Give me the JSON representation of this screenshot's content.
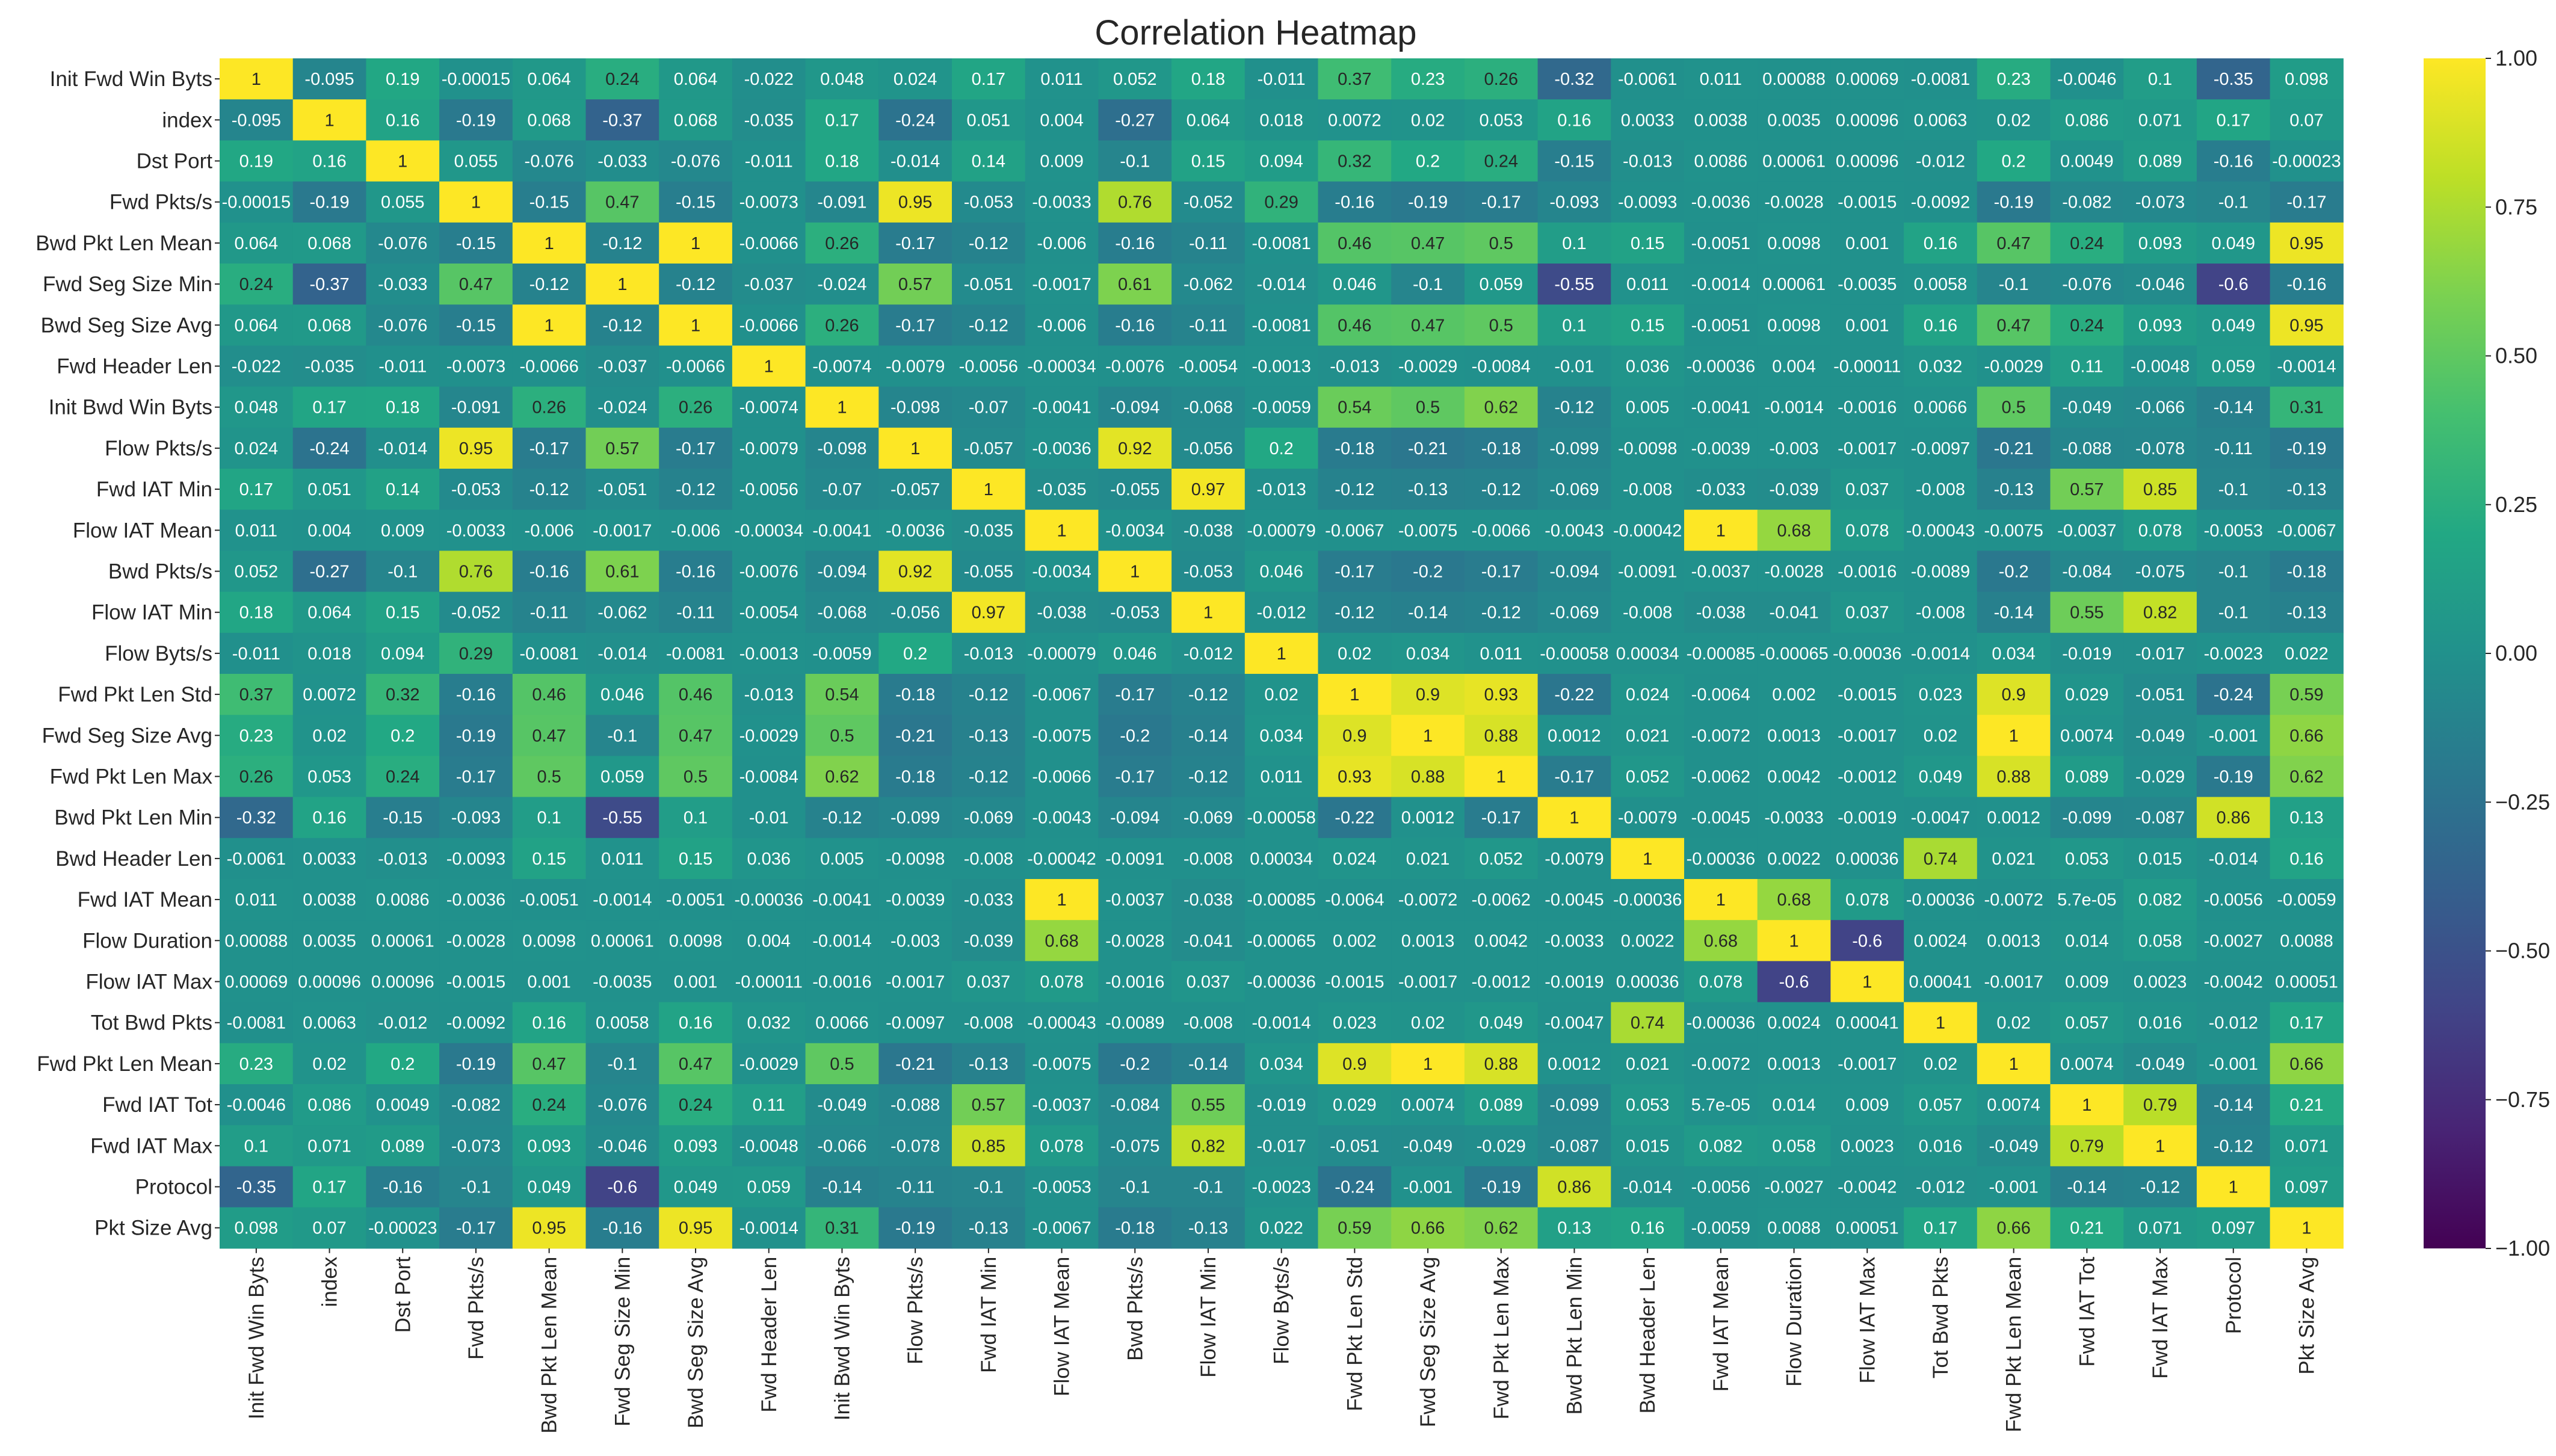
{
  "chart_data": {
    "type": "heatmap",
    "title": "Correlation Heatmap",
    "colormap": "viridis",
    "vmin": -1.0,
    "vmax": 1.0,
    "colorbar_ticks": [
      "1.00",
      "0.75",
      "0.50",
      "0.25",
      "0.00",
      "−0.25",
      "−0.50",
      "−0.75",
      "−1.00"
    ],
    "colorbar_tick_values": [
      1.0,
      0.75,
      0.5,
      0.25,
      0.0,
      -0.25,
      -0.5,
      -0.75,
      -1.0
    ],
    "labels": [
      "Init Fwd Win Byts",
      "index",
      "Dst Port",
      "Fwd Pkts/s",
      "Bwd Pkt Len Mean",
      "Fwd Seg Size Min",
      "Bwd Seg Size Avg",
      "Fwd Header Len",
      "Init Bwd Win Byts",
      "Flow Pkts/s",
      "Fwd IAT Min",
      "Flow IAT Mean",
      "Bwd Pkts/s",
      "Flow IAT Min",
      "Flow Byts/s",
      "Fwd Pkt Len Std",
      "Fwd Seg Size Avg",
      "Fwd Pkt Len Max",
      "Bwd Pkt Len Min",
      "Bwd Header Len",
      "Fwd IAT Mean",
      "Flow Duration",
      "Flow IAT Max",
      "Tot Bwd Pkts",
      "Fwd Pkt Len Mean",
      "Fwd IAT Tot",
      "Fwd IAT Max",
      "Protocol",
      "Pkt Size Avg"
    ],
    "matrix": [
      [
        "1",
        "-0.095",
        "0.19",
        "-0.00015",
        "0.064",
        "0.24",
        "0.064",
        "-0.022",
        "0.048",
        "0.024",
        "0.17",
        "0.011",
        "0.052",
        "0.18",
        "-0.011",
        "0.37",
        "0.23",
        "0.26",
        "-0.32",
        "-0.0061",
        "0.011",
        "0.00088",
        "0.00069",
        "-0.0081",
        "0.23",
        "-0.0046",
        "0.1",
        "-0.35",
        "0.098"
      ],
      [
        "-0.095",
        "1",
        "0.16",
        "-0.19",
        "0.068",
        "-0.37",
        "0.068",
        "-0.035",
        "0.17",
        "-0.24",
        "0.051",
        "0.004",
        "-0.27",
        "0.064",
        "0.018",
        "0.0072",
        "0.02",
        "0.053",
        "0.16",
        "0.0033",
        "0.0038",
        "0.0035",
        "0.00096",
        "0.0063",
        "0.02",
        "0.086",
        "0.071",
        "0.17",
        "0.07"
      ],
      [
        "0.19",
        "0.16",
        "1",
        "0.055",
        "-0.076",
        "-0.033",
        "-0.076",
        "-0.011",
        "0.18",
        "-0.014",
        "0.14",
        "0.009",
        "-0.1",
        "0.15",
        "0.094",
        "0.32",
        "0.2",
        "0.24",
        "-0.15",
        "-0.013",
        "0.0086",
        "0.00061",
        "0.00096",
        "-0.012",
        "0.2",
        "0.0049",
        "0.089",
        "-0.16",
        "-0.00023"
      ],
      [
        "-0.00015",
        "-0.19",
        "0.055",
        "1",
        "-0.15",
        "0.47",
        "-0.15",
        "-0.0073",
        "-0.091",
        "0.95",
        "-0.053",
        "-0.0033",
        "0.76",
        "-0.052",
        "0.29",
        "-0.16",
        "-0.19",
        "-0.17",
        "-0.093",
        "-0.0093",
        "-0.0036",
        "-0.0028",
        "-0.0015",
        "-0.0092",
        "-0.19",
        "-0.082",
        "-0.073",
        "-0.1",
        "-0.17"
      ],
      [
        "0.064",
        "0.068",
        "-0.076",
        "-0.15",
        "1",
        "-0.12",
        "1",
        "-0.0066",
        "0.26",
        "-0.17",
        "-0.12",
        "-0.006",
        "-0.16",
        "-0.11",
        "-0.0081",
        "0.46",
        "0.47",
        "0.5",
        "0.1",
        "0.15",
        "-0.0051",
        "0.0098",
        "0.001",
        "0.16",
        "0.47",
        "0.24",
        "0.093",
        "0.049",
        "0.95"
      ],
      [
        "0.24",
        "-0.37",
        "-0.033",
        "0.47",
        "-0.12",
        "1",
        "-0.12",
        "-0.037",
        "-0.024",
        "0.57",
        "-0.051",
        "-0.0017",
        "0.61",
        "-0.062",
        "-0.014",
        "0.046",
        "-0.1",
        "0.059",
        "-0.55",
        "0.011",
        "-0.0014",
        "0.00061",
        "-0.0035",
        "0.0058",
        "-0.1",
        "-0.076",
        "-0.046",
        "-0.6",
        "-0.16"
      ],
      [
        "0.064",
        "0.068",
        "-0.076",
        "-0.15",
        "1",
        "-0.12",
        "1",
        "-0.0066",
        "0.26",
        "-0.17",
        "-0.12",
        "-0.006",
        "-0.16",
        "-0.11",
        "-0.0081",
        "0.46",
        "0.47",
        "0.5",
        "0.1",
        "0.15",
        "-0.0051",
        "0.0098",
        "0.001",
        "0.16",
        "0.47",
        "0.24",
        "0.093",
        "0.049",
        "0.95"
      ],
      [
        "-0.022",
        "-0.035",
        "-0.011",
        "-0.0073",
        "-0.0066",
        "-0.037",
        "-0.0066",
        "1",
        "-0.0074",
        "-0.0079",
        "-0.0056",
        "-0.00034",
        "-0.0076",
        "-0.0054",
        "-0.0013",
        "-0.013",
        "-0.0029",
        "-0.0084",
        "-0.01",
        "0.036",
        "-0.00036",
        "0.004",
        "-0.00011",
        "0.032",
        "-0.0029",
        "0.11",
        "-0.0048",
        "0.059",
        "-0.0014"
      ],
      [
        "0.048",
        "0.17",
        "0.18",
        "-0.091",
        "0.26",
        "-0.024",
        "0.26",
        "-0.0074",
        "1",
        "-0.098",
        "-0.07",
        "-0.0041",
        "-0.094",
        "-0.068",
        "-0.0059",
        "0.54",
        "0.5",
        "0.62",
        "-0.12",
        "0.005",
        "-0.0041",
        "-0.0014",
        "-0.0016",
        "0.0066",
        "0.5",
        "-0.049",
        "-0.066",
        "-0.14",
        "0.31"
      ],
      [
        "0.024",
        "-0.24",
        "-0.014",
        "0.95",
        "-0.17",
        "0.57",
        "-0.17",
        "-0.0079",
        "-0.098",
        "1",
        "-0.057",
        "-0.0036",
        "0.92",
        "-0.056",
        "0.2",
        "-0.18",
        "-0.21",
        "-0.18",
        "-0.099",
        "-0.0098",
        "-0.0039",
        "-0.003",
        "-0.0017",
        "-0.0097",
        "-0.21",
        "-0.088",
        "-0.078",
        "-0.11",
        "-0.19"
      ],
      [
        "0.17",
        "0.051",
        "0.14",
        "-0.053",
        "-0.12",
        "-0.051",
        "-0.12",
        "-0.0056",
        "-0.07",
        "-0.057",
        "1",
        "-0.035",
        "-0.055",
        "0.97",
        "-0.013",
        "-0.12",
        "-0.13",
        "-0.12",
        "-0.069",
        "-0.008",
        "-0.033",
        "-0.039",
        "0.037",
        "-0.008",
        "-0.13",
        "0.57",
        "0.85",
        "-0.1",
        "-0.13"
      ],
      [
        "0.011",
        "0.004",
        "0.009",
        "-0.0033",
        "-0.006",
        "-0.0017",
        "-0.006",
        "-0.00034",
        "-0.0041",
        "-0.0036",
        "-0.035",
        "1",
        "-0.0034",
        "-0.038",
        "-0.00079",
        "-0.0067",
        "-0.0075",
        "-0.0066",
        "-0.0043",
        "-0.00042",
        "1",
        "0.68",
        "0.078",
        "-0.00043",
        "-0.0075",
        "-0.0037",
        "0.078",
        "-0.0053",
        "-0.0067"
      ],
      [
        "0.052",
        "-0.27",
        "-0.1",
        "0.76",
        "-0.16",
        "0.61",
        "-0.16",
        "-0.0076",
        "-0.094",
        "0.92",
        "-0.055",
        "-0.0034",
        "1",
        "-0.053",
        "0.046",
        "-0.17",
        "-0.2",
        "-0.17",
        "-0.094",
        "-0.0091",
        "-0.0037",
        "-0.0028",
        "-0.0016",
        "-0.0089",
        "-0.2",
        "-0.084",
        "-0.075",
        "-0.1",
        "-0.18"
      ],
      [
        "0.18",
        "0.064",
        "0.15",
        "-0.052",
        "-0.11",
        "-0.062",
        "-0.11",
        "-0.0054",
        "-0.068",
        "-0.056",
        "0.97",
        "-0.038",
        "-0.053",
        "1",
        "-0.012",
        "-0.12",
        "-0.14",
        "-0.12",
        "-0.069",
        "-0.008",
        "-0.038",
        "-0.041",
        "0.037",
        "-0.008",
        "-0.14",
        "0.55",
        "0.82",
        "-0.1",
        "-0.13"
      ],
      [
        "-0.011",
        "0.018",
        "0.094",
        "0.29",
        "-0.0081",
        "-0.014",
        "-0.0081",
        "-0.0013",
        "-0.0059",
        "0.2",
        "-0.013",
        "-0.00079",
        "0.046",
        "-0.012",
        "1",
        "0.02",
        "0.034",
        "0.011",
        "-0.00058",
        "0.00034",
        "-0.00085",
        "-0.00065",
        "-0.00036",
        "-0.0014",
        "0.034",
        "-0.019",
        "-0.017",
        "-0.0023",
        "0.022"
      ],
      [
        "0.37",
        "0.0072",
        "0.32",
        "-0.16",
        "0.46",
        "0.046",
        "0.46",
        "-0.013",
        "0.54",
        "-0.18",
        "-0.12",
        "-0.0067",
        "-0.17",
        "-0.12",
        "0.02",
        "1",
        "0.9",
        "0.93",
        "-0.22",
        "0.024",
        "-0.0064",
        "0.002",
        "-0.0015",
        "0.023",
        "0.9",
        "0.029",
        "-0.051",
        "-0.24",
        "0.59"
      ],
      [
        "0.23",
        "0.02",
        "0.2",
        "-0.19",
        "0.47",
        "-0.1",
        "0.47",
        "-0.0029",
        "0.5",
        "-0.21",
        "-0.13",
        "-0.0075",
        "-0.2",
        "-0.14",
        "0.034",
        "0.9",
        "1",
        "0.88",
        "0.0012",
        "0.021",
        "-0.0072",
        "0.0013",
        "-0.0017",
        "0.02",
        "1",
        "0.0074",
        "-0.049",
        "-0.001",
        "0.66"
      ],
      [
        "0.26",
        "0.053",
        "0.24",
        "-0.17",
        "0.5",
        "0.059",
        "0.5",
        "-0.0084",
        "0.62",
        "-0.18",
        "-0.12",
        "-0.0066",
        "-0.17",
        "-0.12",
        "0.011",
        "0.93",
        "0.88",
        "1",
        "-0.17",
        "0.052",
        "-0.0062",
        "0.0042",
        "-0.0012",
        "0.049",
        "0.88",
        "0.089",
        "-0.029",
        "-0.19",
        "0.62"
      ],
      [
        "-0.32",
        "0.16",
        "-0.15",
        "-0.093",
        "0.1",
        "-0.55",
        "0.1",
        "-0.01",
        "-0.12",
        "-0.099",
        "-0.069",
        "-0.0043",
        "-0.094",
        "-0.069",
        "-0.00058",
        "-0.22",
        "0.0012",
        "-0.17",
        "1",
        "-0.0079",
        "-0.0045",
        "-0.0033",
        "-0.0019",
        "-0.0047",
        "0.0012",
        "-0.099",
        "-0.087",
        "0.86",
        "0.13"
      ],
      [
        "-0.0061",
        "0.0033",
        "-0.013",
        "-0.0093",
        "0.15",
        "0.011",
        "0.15",
        "0.036",
        "0.005",
        "-0.0098",
        "-0.008",
        "-0.00042",
        "-0.0091",
        "-0.008",
        "0.00034",
        "0.024",
        "0.021",
        "0.052",
        "-0.0079",
        "1",
        "-0.00036",
        "0.0022",
        "0.00036",
        "0.74",
        "0.021",
        "0.053",
        "0.015",
        "-0.014",
        "0.16"
      ],
      [
        "0.011",
        "0.0038",
        "0.0086",
        "-0.0036",
        "-0.0051",
        "-0.0014",
        "-0.0051",
        "-0.00036",
        "-0.0041",
        "-0.0039",
        "-0.033",
        "1",
        "-0.0037",
        "-0.038",
        "-0.00085",
        "-0.0064",
        "-0.0072",
        "-0.0062",
        "-0.0045",
        "-0.00036",
        "1",
        "0.68",
        "0.078",
        "-0.00036",
        "-0.0072",
        "5.7e-05",
        "0.082",
        "-0.0056",
        "-0.0059"
      ],
      [
        "0.00088",
        "0.0035",
        "0.00061",
        "-0.0028",
        "0.0098",
        "0.00061",
        "0.0098",
        "0.004",
        "-0.0014",
        "-0.003",
        "-0.039",
        "0.68",
        "-0.0028",
        "-0.041",
        "-0.00065",
        "0.002",
        "0.0013",
        "0.0042",
        "-0.0033",
        "0.0022",
        "0.68",
        "1",
        "-0.6",
        "0.0024",
        "0.0013",
        "0.014",
        "0.058",
        "-0.0027",
        "0.0088"
      ],
      [
        "0.00069",
        "0.00096",
        "0.00096",
        "-0.0015",
        "0.001",
        "-0.0035",
        "0.001",
        "-0.00011",
        "-0.0016",
        "-0.0017",
        "0.037",
        "0.078",
        "-0.0016",
        "0.037",
        "-0.00036",
        "-0.0015",
        "-0.0017",
        "-0.0012",
        "-0.0019",
        "0.00036",
        "0.078",
        "-0.6",
        "1",
        "0.00041",
        "-0.0017",
        "0.009",
        "0.0023",
        "-0.0042",
        "0.00051"
      ],
      [
        "-0.0081",
        "0.0063",
        "-0.012",
        "-0.0092",
        "0.16",
        "0.0058",
        "0.16",
        "0.032",
        "0.0066",
        "-0.0097",
        "-0.008",
        "-0.00043",
        "-0.0089",
        "-0.008",
        "-0.0014",
        "0.023",
        "0.02",
        "0.049",
        "-0.0047",
        "0.74",
        "-0.00036",
        "0.0024",
        "0.00041",
        "1",
        "0.02",
        "0.057",
        "0.016",
        "-0.012",
        "0.17"
      ],
      [
        "0.23",
        "0.02",
        "0.2",
        "-0.19",
        "0.47",
        "-0.1",
        "0.47",
        "-0.0029",
        "0.5",
        "-0.21",
        "-0.13",
        "-0.0075",
        "-0.2",
        "-0.14",
        "0.034",
        "0.9",
        "1",
        "0.88",
        "0.0012",
        "0.021",
        "-0.0072",
        "0.0013",
        "-0.0017",
        "0.02",
        "1",
        "0.0074",
        "-0.049",
        "-0.001",
        "0.66"
      ],
      [
        "-0.0046",
        "0.086",
        "0.0049",
        "-0.082",
        "0.24",
        "-0.076",
        "0.24",
        "0.11",
        "-0.049",
        "-0.088",
        "0.57",
        "-0.0037",
        "-0.084",
        "0.55",
        "-0.019",
        "0.029",
        "0.0074",
        "0.089",
        "-0.099",
        "0.053",
        "5.7e-05",
        "0.014",
        "0.009",
        "0.057",
        "0.0074",
        "1",
        "0.79",
        "-0.14",
        "0.21"
      ],
      [
        "0.1",
        "0.071",
        "0.089",
        "-0.073",
        "0.093",
        "-0.046",
        "0.093",
        "-0.0048",
        "-0.066",
        "-0.078",
        "0.85",
        "0.078",
        "-0.075",
        "0.82",
        "-0.017",
        "-0.051",
        "-0.049",
        "-0.029",
        "-0.087",
        "0.015",
        "0.082",
        "0.058",
        "0.0023",
        "0.016",
        "-0.049",
        "0.79",
        "1",
        "-0.12",
        "0.071"
      ],
      [
        "-0.35",
        "0.17",
        "-0.16",
        "-0.1",
        "0.049",
        "-0.6",
        "0.049",
        "0.059",
        "-0.14",
        "-0.11",
        "-0.1",
        "-0.0053",
        "-0.1",
        "-0.1",
        "-0.0023",
        "-0.24",
        "-0.001",
        "-0.19",
        "0.86",
        "-0.014",
        "-0.0056",
        "-0.0027",
        "-0.0042",
        "-0.012",
        "-0.001",
        "-0.14",
        "-0.12",
        "1",
        "0.097"
      ],
      [
        "0.098",
        "0.07",
        "-0.00023",
        "-0.17",
        "0.95",
        "-0.16",
        "0.95",
        "-0.0014",
        "0.31",
        "-0.19",
        "-0.13",
        "-0.0067",
        "-0.18",
        "-0.13",
        "0.022",
        "0.59",
        "0.66",
        "0.62",
        "0.13",
        "0.16",
        "-0.0059",
        "0.0088",
        "0.00051",
        "0.17",
        "0.66",
        "0.21",
        "0.071",
        "0.097",
        "1"
      ]
    ]
  }
}
